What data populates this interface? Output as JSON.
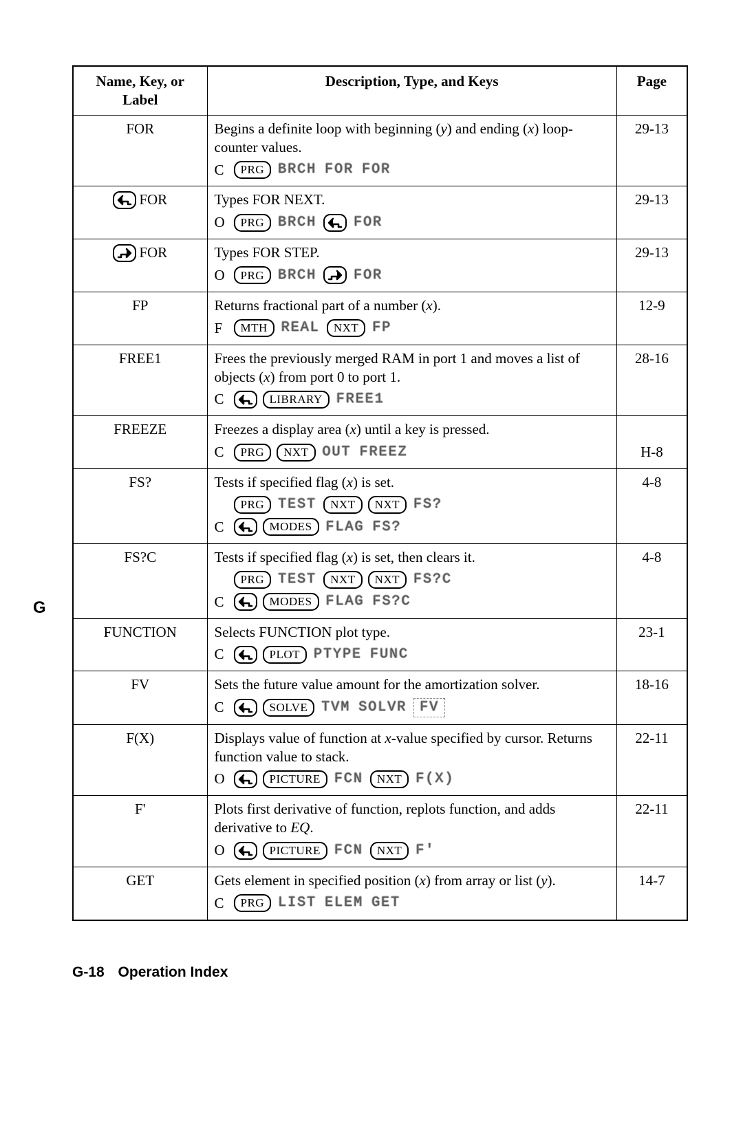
{
  "table": {
    "headers": {
      "name": "Name, Key, or Label",
      "desc": "Description, Type, and Keys",
      "page": "Page"
    },
    "rows": [
      {
        "name_plain": "FOR",
        "page": "29-13",
        "desc_parts": [
          "Begins a definite loop with beginning (",
          "y",
          ") and ending (",
          "x",
          ") loop-counter values."
        ],
        "keylines": [
          {
            "prefix": "C",
            "seq": [
              {
                "t": "hard",
                "v": "PRG"
              },
              {
                "t": "soft",
                "v": "BRCH"
              },
              {
                "t": "soft",
                "v": "FOR"
              },
              {
                "t": "soft",
                "v": "FOR"
              }
            ]
          }
        ]
      },
      {
        "name_compound": {
          "shift": "left",
          "text": "FOR"
        },
        "page": "29-13",
        "desc_parts": [
          "Types FOR NEXT."
        ],
        "keylines": [
          {
            "prefix": "O",
            "seq": [
              {
                "t": "hard",
                "v": "PRG"
              },
              {
                "t": "soft",
                "v": "BRCH"
              },
              {
                "t": "shift",
                "v": "left"
              },
              {
                "t": "soft",
                "v": "FOR"
              }
            ]
          }
        ]
      },
      {
        "name_compound": {
          "shift": "right",
          "text": "FOR"
        },
        "page": "29-13",
        "desc_parts": [
          "Types FOR STEP."
        ],
        "keylines": [
          {
            "prefix": "O",
            "seq": [
              {
                "t": "hard",
                "v": "PRG"
              },
              {
                "t": "soft",
                "v": "BRCH"
              },
              {
                "t": "shift",
                "v": "right"
              },
              {
                "t": "soft",
                "v": "FOR"
              }
            ]
          }
        ]
      },
      {
        "name_plain": "FP",
        "page": "12-9",
        "desc_parts": [
          "Returns fractional part of a number (",
          "x",
          ")."
        ],
        "keylines": [
          {
            "prefix": "F",
            "seq": [
              {
                "t": "hard",
                "v": "MTH"
              },
              {
                "t": "soft",
                "v": "REAL"
              },
              {
                "t": "hard",
                "v": "NXT"
              },
              {
                "t": "soft",
                "v": "FP"
              }
            ]
          }
        ]
      },
      {
        "name_plain": "FREE1",
        "page": "28-16",
        "desc_parts": [
          "Frees the previously merged RAM in port 1 and moves a list of objects (",
          "x",
          ") from port 0 to port 1."
        ],
        "keylines": [
          {
            "prefix": "C",
            "seq": [
              {
                "t": "shift",
                "v": "left"
              },
              {
                "t": "hard",
                "v": "LIBRARY"
              },
              {
                "t": "soft",
                "v": "FREE1"
              }
            ]
          }
        ]
      },
      {
        "name_plain": "FREEZE",
        "page": "H-8",
        "page_valign": "bottom",
        "desc_parts": [
          "Freezes a display area (",
          "x",
          ") until a key is pressed."
        ],
        "keylines": [
          {
            "prefix": "C",
            "seq": [
              {
                "t": "hard",
                "v": "PRG"
              },
              {
                "t": "hard",
                "v": "NXT"
              },
              {
                "t": "soft",
                "v": "OUT"
              },
              {
                "t": "soft",
                "v": "FREEZ"
              }
            ]
          }
        ]
      },
      {
        "name_plain": "FS?",
        "page": "4-8",
        "desc_parts": [
          "Tests if specified flag (",
          "x",
          ") is set."
        ],
        "keylines": [
          {
            "prefix": "",
            "seq": [
              {
                "t": "hard",
                "v": "PRG"
              },
              {
                "t": "soft",
                "v": "TEST"
              },
              {
                "t": "hard",
                "v": "NXT"
              },
              {
                "t": "hard",
                "v": "NXT"
              },
              {
                "t": "soft",
                "v": "FS?"
              }
            ]
          },
          {
            "prefix": "C",
            "seq": [
              {
                "t": "shift",
                "v": "left"
              },
              {
                "t": "hard",
                "v": "MODES"
              },
              {
                "t": "soft",
                "v": "FLAG"
              },
              {
                "t": "soft",
                "v": "FS?"
              }
            ]
          }
        ]
      },
      {
        "name_plain": "FS?C",
        "page": "4-8",
        "desc_parts": [
          "Tests if specified flag (",
          "x",
          ") is set, then clears it."
        ],
        "keylines": [
          {
            "prefix": "",
            "seq": [
              {
                "t": "hard",
                "v": "PRG"
              },
              {
                "t": "soft",
                "v": "TEST"
              },
              {
                "t": "hard",
                "v": "NXT"
              },
              {
                "t": "hard",
                "v": "NXT"
              },
              {
                "t": "soft",
                "v": "FS?C"
              }
            ]
          },
          {
            "prefix": "C",
            "seq": [
              {
                "t": "shift",
                "v": "left"
              },
              {
                "t": "hard",
                "v": "MODES"
              },
              {
                "t": "soft",
                "v": "FLAG"
              },
              {
                "t": "soft",
                "v": "FS?C"
              }
            ]
          }
        ]
      },
      {
        "name_plain": "FUNCTION",
        "page": "23-1",
        "desc_parts": [
          "Selects FUNCTION plot type."
        ],
        "keylines": [
          {
            "prefix": "C",
            "seq": [
              {
                "t": "shift",
                "v": "left"
              },
              {
                "t": "hard",
                "v": "PLOT"
              },
              {
                "t": "soft",
                "v": "PTYPE"
              },
              {
                "t": "soft",
                "v": "FUNC"
              }
            ]
          }
        ]
      },
      {
        "name_plain": "FV",
        "page": "18-16",
        "desc_parts": [
          "Sets the future value amount for the amortization solver."
        ],
        "keylines": [
          {
            "prefix": "C",
            "seq": [
              {
                "t": "shift",
                "v": "left"
              },
              {
                "t": "hard",
                "v": "SOLVE"
              },
              {
                "t": "soft",
                "v": "TVM"
              },
              {
                "t": "soft",
                "v": "SOLVR"
              },
              {
                "t": "softbox",
                "v": "FV"
              }
            ]
          }
        ]
      },
      {
        "name_plain": "F(X)",
        "page": "22-11",
        "desc_parts": [
          "Displays value of function at ",
          "x",
          "-value specified by cursor. Returns function value to stack."
        ],
        "keylines": [
          {
            "prefix": "O",
            "seq": [
              {
                "t": "shift",
                "v": "left"
              },
              {
                "t": "hard",
                "v": "PICTURE"
              },
              {
                "t": "soft",
                "v": "FCN"
              },
              {
                "t": "hard",
                "v": "NXT"
              },
              {
                "t": "soft",
                "v": "F(X)"
              }
            ]
          }
        ]
      },
      {
        "name_plain": "F'",
        "page": "22-11",
        "desc_parts_raw": [
          "Plots first derivative of function, replots function, and adds derivative to ",
          {
            "ital": "EQ"
          },
          "."
        ],
        "keylines": [
          {
            "prefix": "O",
            "seq": [
              {
                "t": "shift",
                "v": "left"
              },
              {
                "t": "hard",
                "v": "PICTURE"
              },
              {
                "t": "soft",
                "v": "FCN"
              },
              {
                "t": "hard",
                "v": "NXT"
              },
              {
                "t": "soft",
                "v": "F'"
              }
            ]
          }
        ]
      },
      {
        "name_plain": "GET",
        "page": "14-7",
        "desc_parts": [
          "Gets element in specified position (",
          "x",
          ") from array or list (",
          "y",
          ")."
        ],
        "keylines": [
          {
            "prefix": "C",
            "seq": [
              {
                "t": "hard",
                "v": "PRG"
              },
              {
                "t": "soft",
                "v": "LIST"
              },
              {
                "t": "soft",
                "v": "ELEM"
              },
              {
                "t": "soft",
                "v": "GET"
              }
            ]
          }
        ]
      }
    ]
  },
  "side_letter": "G",
  "footer": {
    "page_num": "G-18",
    "title": "Operation Index"
  }
}
